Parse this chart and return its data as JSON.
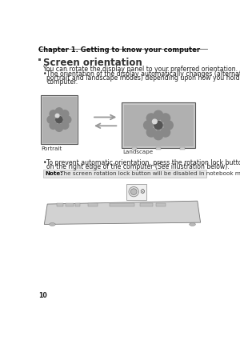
{
  "bg_color": "#ffffff",
  "header_text": "Chapter 1. Getting to know your computer",
  "section_title": "Screen orientation",
  "body1": "You can rotate the display panel to your preferred orientation.",
  "bullet1_line1": "The orientation of the display automatically changes (alternating between",
  "bullet1_line2": "portrait and landscape modes) depending upon how you hold the",
  "bullet1_line3": "computer.",
  "bullet2_line1": "To prevent automatic orientation, press the rotation lock button. It is located",
  "bullet2_line2": "on the right edge of the computer (See illustration below).",
  "note_label": "Note:",
  "note_text": " The screen rotation lock button will be disabled in notebook mode.",
  "label_portrait": "Portrait",
  "label_landscape": "Landscape",
  "page_number": "10",
  "header_font_size": 6.0,
  "section_font_size": 8.5,
  "body_font_size": 5.6,
  "note_font_size": 5.2
}
